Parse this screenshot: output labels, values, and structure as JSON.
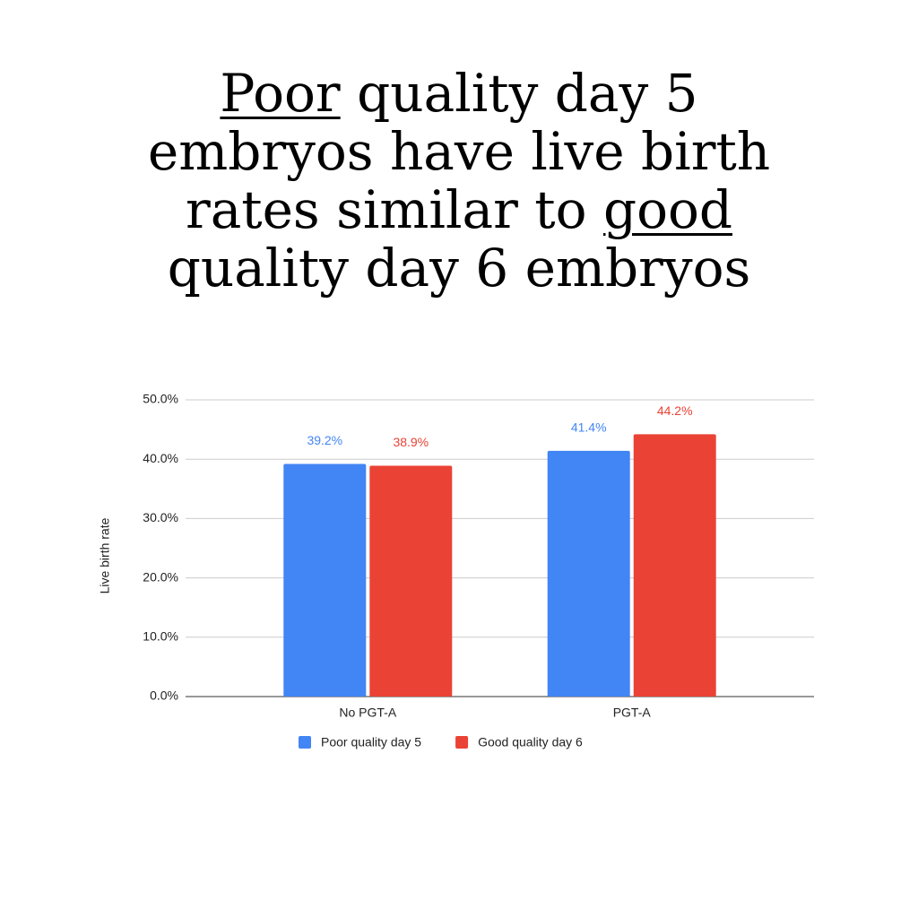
{
  "chart_data": {
    "type": "bar",
    "title": [
      "Poor",
      "quality day 5 embryos have live birth rates similar to",
      "good",
      "quality day 6 embryos"
    ],
    "y_label": "Live birth rate",
    "categories": [
      "No PGT-A",
      "PGT-A"
    ],
    "series": [
      {
        "name": "Poor quality day 5",
        "color": "#4285f4",
        "values": [
          39.2,
          41.4
        ],
        "value_labels": [
          "39.2%",
          "41.4%"
        ]
      },
      {
        "name": "Good quality day 6",
        "color": "#ea4335",
        "values": [
          38.9,
          44.2
        ],
        "value_labels": [
          "38.9%",
          "44.2%"
        ]
      }
    ],
    "ylim": [
      0,
      50
    ],
    "yticks": [
      {
        "value": 0,
        "label": "0.0%"
      },
      {
        "value": 10,
        "label": "10.0%"
      },
      {
        "value": 20,
        "label": "20.0%"
      },
      {
        "value": 30,
        "label": "30.0%"
      },
      {
        "value": 40,
        "label": "40.0%"
      },
      {
        "value": 50,
        "label": "50.0%"
      }
    ],
    "grid": true
  }
}
